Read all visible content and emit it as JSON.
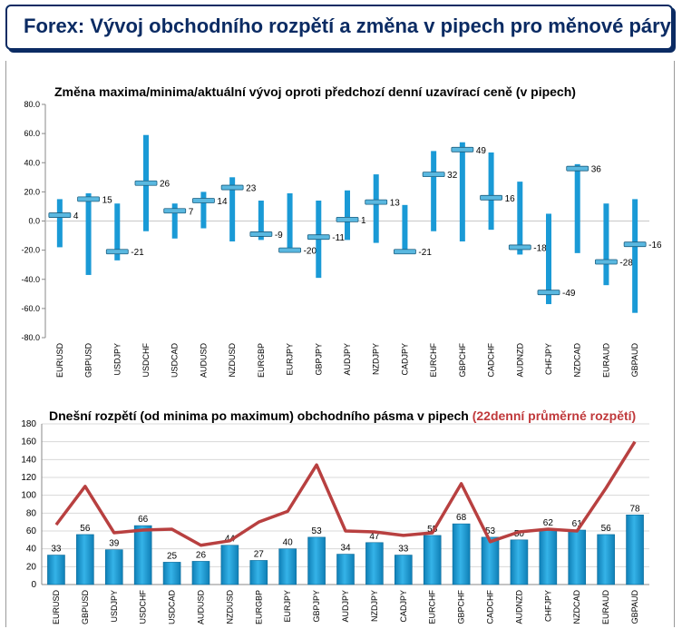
{
  "header": {
    "title": "Forex: Vývoj obchodního rozpětí a změna v pipech pro měnové páry"
  },
  "colors": {
    "title": "#0b2b63",
    "bar": "#1a9ad6",
    "line": "#b84040",
    "highlight": "#c0393b"
  },
  "chart_data": [
    {
      "type": "bar",
      "title": "Změna maxima/minima/aktuální vývoj oproti předchozí denní uzavírací ceně (v pipech)",
      "ylim": [
        -80,
        80
      ],
      "yticks": [
        "80.0",
        "60.0",
        "40.0",
        "20.0",
        "0.0",
        "-20.0",
        "-40.0",
        "-60.0",
        "-80.0"
      ],
      "categories": [
        "EURUSD",
        "GBPUSD",
        "USDJPY",
        "USDCHF",
        "USDCAD",
        "AUDUSD",
        "NZDUSD",
        "EURGBP",
        "EURJPY",
        "GBPJPY",
        "AUDJPY",
        "NZDJPY",
        "CADJPY",
        "EURCHF",
        "GBPCHF",
        "CADCHF",
        "AUDNZD",
        "CHFJPY",
        "NZDCAD",
        "EURAUD",
        "GBPAUD"
      ],
      "series": [
        {
          "name": "max",
          "values": [
            15,
            19,
            12,
            59,
            12,
            20,
            30,
            14,
            19,
            14,
            21,
            32,
            11,
            48,
            54,
            47,
            27,
            5,
            39,
            12,
            15
          ]
        },
        {
          "name": "min",
          "values": [
            -18,
            -37,
            -27,
            -7,
            -12,
            -5,
            -14,
            -13,
            -21,
            -39,
            -13,
            -15,
            -22,
            -7,
            -14,
            -6,
            -23,
            -57,
            -22,
            -44,
            -63
          ]
        },
        {
          "name": "current",
          "values": [
            4,
            15,
            -21,
            26,
            7,
            14,
            23,
            -9,
            -20,
            -11,
            1,
            13,
            -21,
            32,
            49,
            16,
            -18,
            -49,
            36,
            -28,
            -16
          ]
        }
      ],
      "data_labels": [
        "4",
        "15",
        "-21",
        "26",
        "7",
        "14",
        "23",
        "-9",
        "-20",
        "-11",
        "1",
        "13",
        "-21",
        "32",
        "49",
        "16",
        "-18",
        "-49",
        "36",
        "-28",
        "-16"
      ]
    },
    {
      "type": "bar",
      "title": "Dnešní rozpětí (od minima po maximum) obchodního pásma v pipech",
      "subtitle": "(22denní průměrné rozpětí)",
      "ylim": [
        0,
        180
      ],
      "yticks": [
        "0",
        "20",
        "40",
        "60",
        "80",
        "100",
        "120",
        "140",
        "160",
        "180"
      ],
      "categories": [
        "EURUSD",
        "GBPUSD",
        "USDJPY",
        "USDCHF",
        "USDCAD",
        "AUDUSD",
        "NZDUSD",
        "EURGBP",
        "EURJPY",
        "GBPJPY",
        "AUDJPY",
        "NZDJPY",
        "CADJPY",
        "EURCHF",
        "GBPCHF",
        "CADCHF",
        "AUDNZD",
        "CHFJPY",
        "NZDCAD",
        "EURAUD",
        "GBPAUD"
      ],
      "series": [
        {
          "name": "range",
          "values": [
            33,
            56,
            39,
            66,
            25,
            26,
            44,
            27,
            40,
            53,
            34,
            47,
            33,
            55,
            68,
            53,
            50,
            62,
            61,
            56,
            78
          ]
        },
        {
          "name": "avg22",
          "values": [
            67,
            110,
            58,
            61,
            62,
            44,
            49,
            70,
            82,
            134,
            60,
            59,
            55,
            58,
            113,
            48,
            59,
            62,
            60,
            108,
            160
          ]
        }
      ],
      "data_labels": [
        "33",
        "56",
        "39",
        "66",
        "25",
        "26",
        "44",
        "27",
        "40",
        "53",
        "34",
        "47",
        "33",
        "55",
        "68",
        "53",
        "50",
        "62",
        "61",
        "56",
        "78"
      ]
    }
  ]
}
